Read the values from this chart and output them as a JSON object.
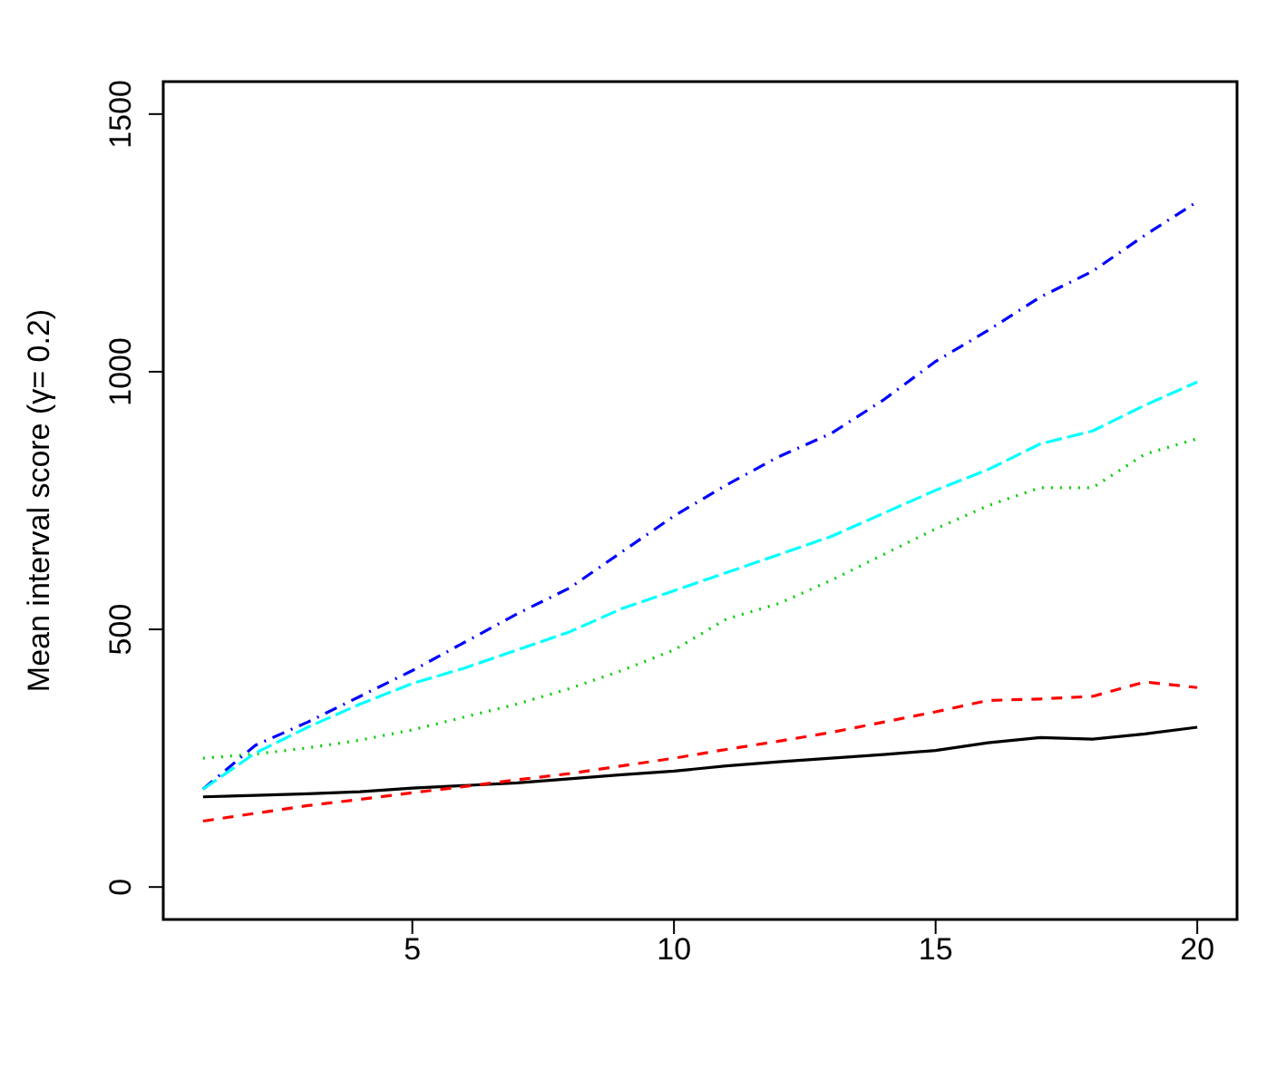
{
  "chart_data": {
    "type": "line",
    "ylabel": "Mean interval score (γ= 0.2)",
    "x": [
      1,
      2,
      3,
      4,
      5,
      6,
      7,
      8,
      9,
      10,
      11,
      12,
      13,
      14,
      15,
      16,
      17,
      18,
      19,
      20
    ],
    "xlim": [
      0.24,
      20.76
    ],
    "xticks": [
      5,
      10,
      15,
      20
    ],
    "ylim": [
      -63,
      1563
    ],
    "yticks": [
      0,
      500,
      1000,
      1500
    ],
    "grid": false,
    "legend": false,
    "marker": "none",
    "series": [
      {
        "color": "#000000",
        "line_style": "solid",
        "values": [
          175,
          178,
          181,
          185,
          192,
          197,
          202,
          210,
          218,
          225,
          235,
          243,
          250,
          257,
          265,
          280,
          290,
          287,
          297,
          310
        ]
      },
      {
        "color": "#ff0000",
        "line_style": "dashed",
        "values": [
          128,
          143,
          158,
          170,
          183,
          195,
          208,
          220,
          235,
          250,
          267,
          283,
          300,
          320,
          340,
          362,
          365,
          370,
          398,
          387
        ]
      },
      {
        "color": "#00cd00",
        "line_style": "dotted",
        "values": [
          250,
          258,
          270,
          285,
          305,
          330,
          355,
          385,
          420,
          460,
          520,
          550,
          595,
          645,
          695,
          740,
          775,
          775,
          840,
          870
        ]
      },
      {
        "color": "#0000ff",
        "line_style": "dashdot",
        "values": [
          190,
          275,
          320,
          370,
          420,
          475,
          530,
          580,
          650,
          720,
          780,
          835,
          880,
          945,
          1020,
          1080,
          1145,
          1195,
          1265,
          1330
        ]
      },
      {
        "color": "#00ffff",
        "line_style": "longdash",
        "values": [
          190,
          260,
          310,
          355,
          395,
          425,
          460,
          495,
          540,
          575,
          610,
          645,
          680,
          725,
          770,
          810,
          860,
          885,
          935,
          980
        ]
      }
    ]
  }
}
